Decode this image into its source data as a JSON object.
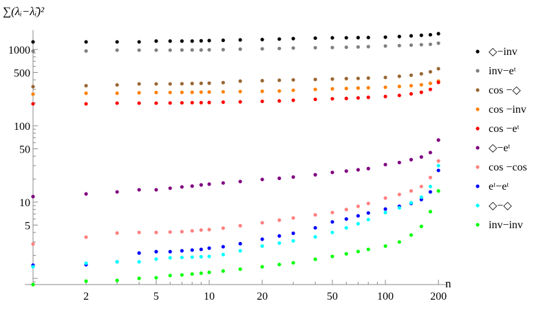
{
  "chart_data": {
    "type": "scatter",
    "title": "",
    "xlabel": "n",
    "ylabel": "∑(λᵢ−λ̃ᵢ)²",
    "xscale": "log",
    "yscale": "log",
    "xlim": [
      0.95,
      225
    ],
    "ylim": [
      0.83,
      1800
    ],
    "grid": false,
    "legend_position": "right",
    "x_ticks": [
      2,
      5,
      10,
      20,
      50,
      100,
      200
    ],
    "y_ticks": [
      5,
      10,
      50,
      100,
      500,
      1000
    ],
    "x": [
      1,
      2,
      3,
      4,
      5,
      6,
      7,
      8,
      9,
      10,
      12,
      15,
      20,
      25,
      30,
      40,
      50,
      60,
      70,
      80,
      100,
      120,
      140,
      160,
      180,
      200
    ],
    "series": [
      {
        "name": "◇−inv",
        "color": "#000000",
        "values": [
          1257,
          1257,
          1257,
          1257,
          1290,
          1290,
          1290,
          1290,
          1300,
          1310,
          1320,
          1336,
          1350,
          1370,
          1390,
          1410,
          1422,
          1425,
          1430,
          1435,
          1450,
          1480,
          1510,
          1535,
          1560,
          1611
        ]
      },
      {
        "name": "inv−eᵗ",
        "color": "#808080",
        "values": [
          950,
          955,
          980,
          980,
          980,
          980,
          985,
          985,
          985,
          990,
          995,
          1010,
          1020,
          1030,
          1045,
          1055,
          1060,
          1070,
          1080,
          1090,
          1110,
          1125,
          1140,
          1155,
          1170,
          1210
        ]
      },
      {
        "name": "cos −◇",
        "color": "#996633",
        "values": [
          326,
          335,
          343,
          354,
          354,
          354,
          356,
          358,
          360,
          362,
          368,
          385,
          390,
          395,
          400,
          405,
          410,
          415,
          418,
          422,
          430,
          445,
          460,
          480,
          510,
          560
        ]
      },
      {
        "name": "cos −inv",
        "color": "#ff8000",
        "values": [
          260,
          267,
          267,
          271,
          273,
          273,
          274,
          275,
          276,
          277,
          279,
          281,
          283,
          286,
          292,
          300,
          305,
          308,
          312,
          315,
          320,
          328,
          335,
          345,
          360,
          385
        ]
      },
      {
        "name": "cos −eᵗ",
        "color": "#ff0000",
        "values": [
          194,
          194,
          198,
          198,
          198,
          199,
          200,
          201,
          201,
          202,
          204,
          206,
          209,
          212,
          216,
          222,
          226,
          228,
          232,
          236,
          242,
          250,
          262,
          275,
          300,
          370
        ]
      },
      {
        "name": "◇−eᵗ",
        "color": "#800080",
        "values": [
          11.8,
          12.8,
          13.6,
          14.5,
          14.5,
          15.2,
          15.8,
          16.2,
          16.8,
          17.2,
          17.8,
          18.6,
          19.8,
          20.5,
          21.3,
          22.8,
          24.5,
          25.5,
          26.5,
          27.5,
          31,
          33,
          36,
          39,
          44.6,
          65
        ]
      },
      {
        "name": "cos −cos",
        "color": "#ff8080",
        "values": [
          2.82,
          3.47,
          3.93,
          4.0,
          4.0,
          4.05,
          4.1,
          4.2,
          4.3,
          4.36,
          4.55,
          4.9,
          5.36,
          5.8,
          6.2,
          6.8,
          7.3,
          8.0,
          8.8,
          9.6,
          11.3,
          12.6,
          14,
          16,
          21,
          34.6
        ]
      },
      {
        "name": "eᵗ−eᵗ",
        "color": "#0000ff",
        "values": [
          1.49,
          1.51,
          1.65,
          2.15,
          2.24,
          2.24,
          2.3,
          2.35,
          2.4,
          2.49,
          2.6,
          2.85,
          3.26,
          3.6,
          3.9,
          4.6,
          5.5,
          6.0,
          6.6,
          7.2,
          8.1,
          8.8,
          9.6,
          10.8,
          13.6,
          26
        ]
      },
      {
        "name": "◇−◇",
        "color": "#00ffff",
        "values": [
          1.42,
          1.58,
          1.65,
          1.65,
          1.79,
          1.86,
          1.88,
          1.9,
          1.92,
          1.94,
          2.05,
          2.3,
          2.65,
          2.9,
          3.1,
          3.5,
          4.0,
          4.6,
          5.2,
          5.9,
          7.3,
          8.4,
          9.8,
          11.6,
          16,
          30
        ]
      },
      {
        "name": "inv−inv",
        "color": "#00ff00",
        "values": [
          0.83,
          0.92,
          0.94,
          1.0,
          1.02,
          1.09,
          1.11,
          1.14,
          1.17,
          1.2,
          1.25,
          1.32,
          1.42,
          1.52,
          1.6,
          1.78,
          1.94,
          2.1,
          2.25,
          2.4,
          2.65,
          3.0,
          3.7,
          4.8,
          7.5,
          14
        ]
      }
    ]
  }
}
